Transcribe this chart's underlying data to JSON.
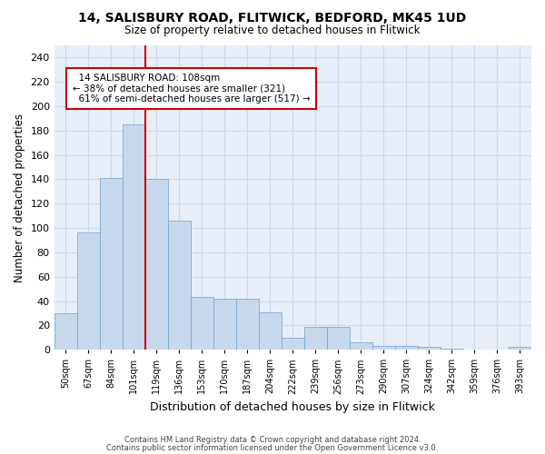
{
  "title_line1": "14, SALISBURY ROAD, FLITWICK, BEDFORD, MK45 1UD",
  "title_line2": "Size of property relative to detached houses in Flitwick",
  "xlabel": "Distribution of detached houses by size in Flitwick",
  "ylabel": "Number of detached properties",
  "bar_color": "#c8d8ec",
  "bar_edge_color": "#7aaad0",
  "annotation_box_color": "#ffffff",
  "annotation_box_edge": "#cc0000",
  "vline_color": "#cc0000",
  "property_label": "14 SALISBURY ROAD: 108sqm",
  "pct_smaller": "38% of detached houses are smaller (321)",
  "pct_larger": "61% of semi-detached houses are larger (517)",
  "footer_line1": "Contains HM Land Registry data © Crown copyright and database right 2024.",
  "footer_line2": "Contains public sector information licensed under the Open Government Licence v3.0.",
  "categories": [
    "50sqm",
    "67sqm",
    "84sqm",
    "101sqm",
    "119sqm",
    "136sqm",
    "153sqm",
    "170sqm",
    "187sqm",
    "204sqm",
    "222sqm",
    "239sqm",
    "256sqm",
    "273sqm",
    "290sqm",
    "307sqm",
    "324sqm",
    "342sqm",
    "359sqm",
    "376sqm",
    "393sqm"
  ],
  "values": [
    30,
    96,
    141,
    185,
    140,
    106,
    43,
    42,
    42,
    31,
    10,
    19,
    19,
    6,
    3,
    3,
    2,
    1,
    0,
    0,
    2
  ],
  "ylim": [
    0,
    250
  ],
  "yticks": [
    0,
    20,
    40,
    60,
    80,
    100,
    120,
    140,
    160,
    180,
    200,
    220,
    240
  ],
  "vline_x_idx": 4,
  "grid_color": "#c8d8ec",
  "bg_color": "#e8eef8"
}
